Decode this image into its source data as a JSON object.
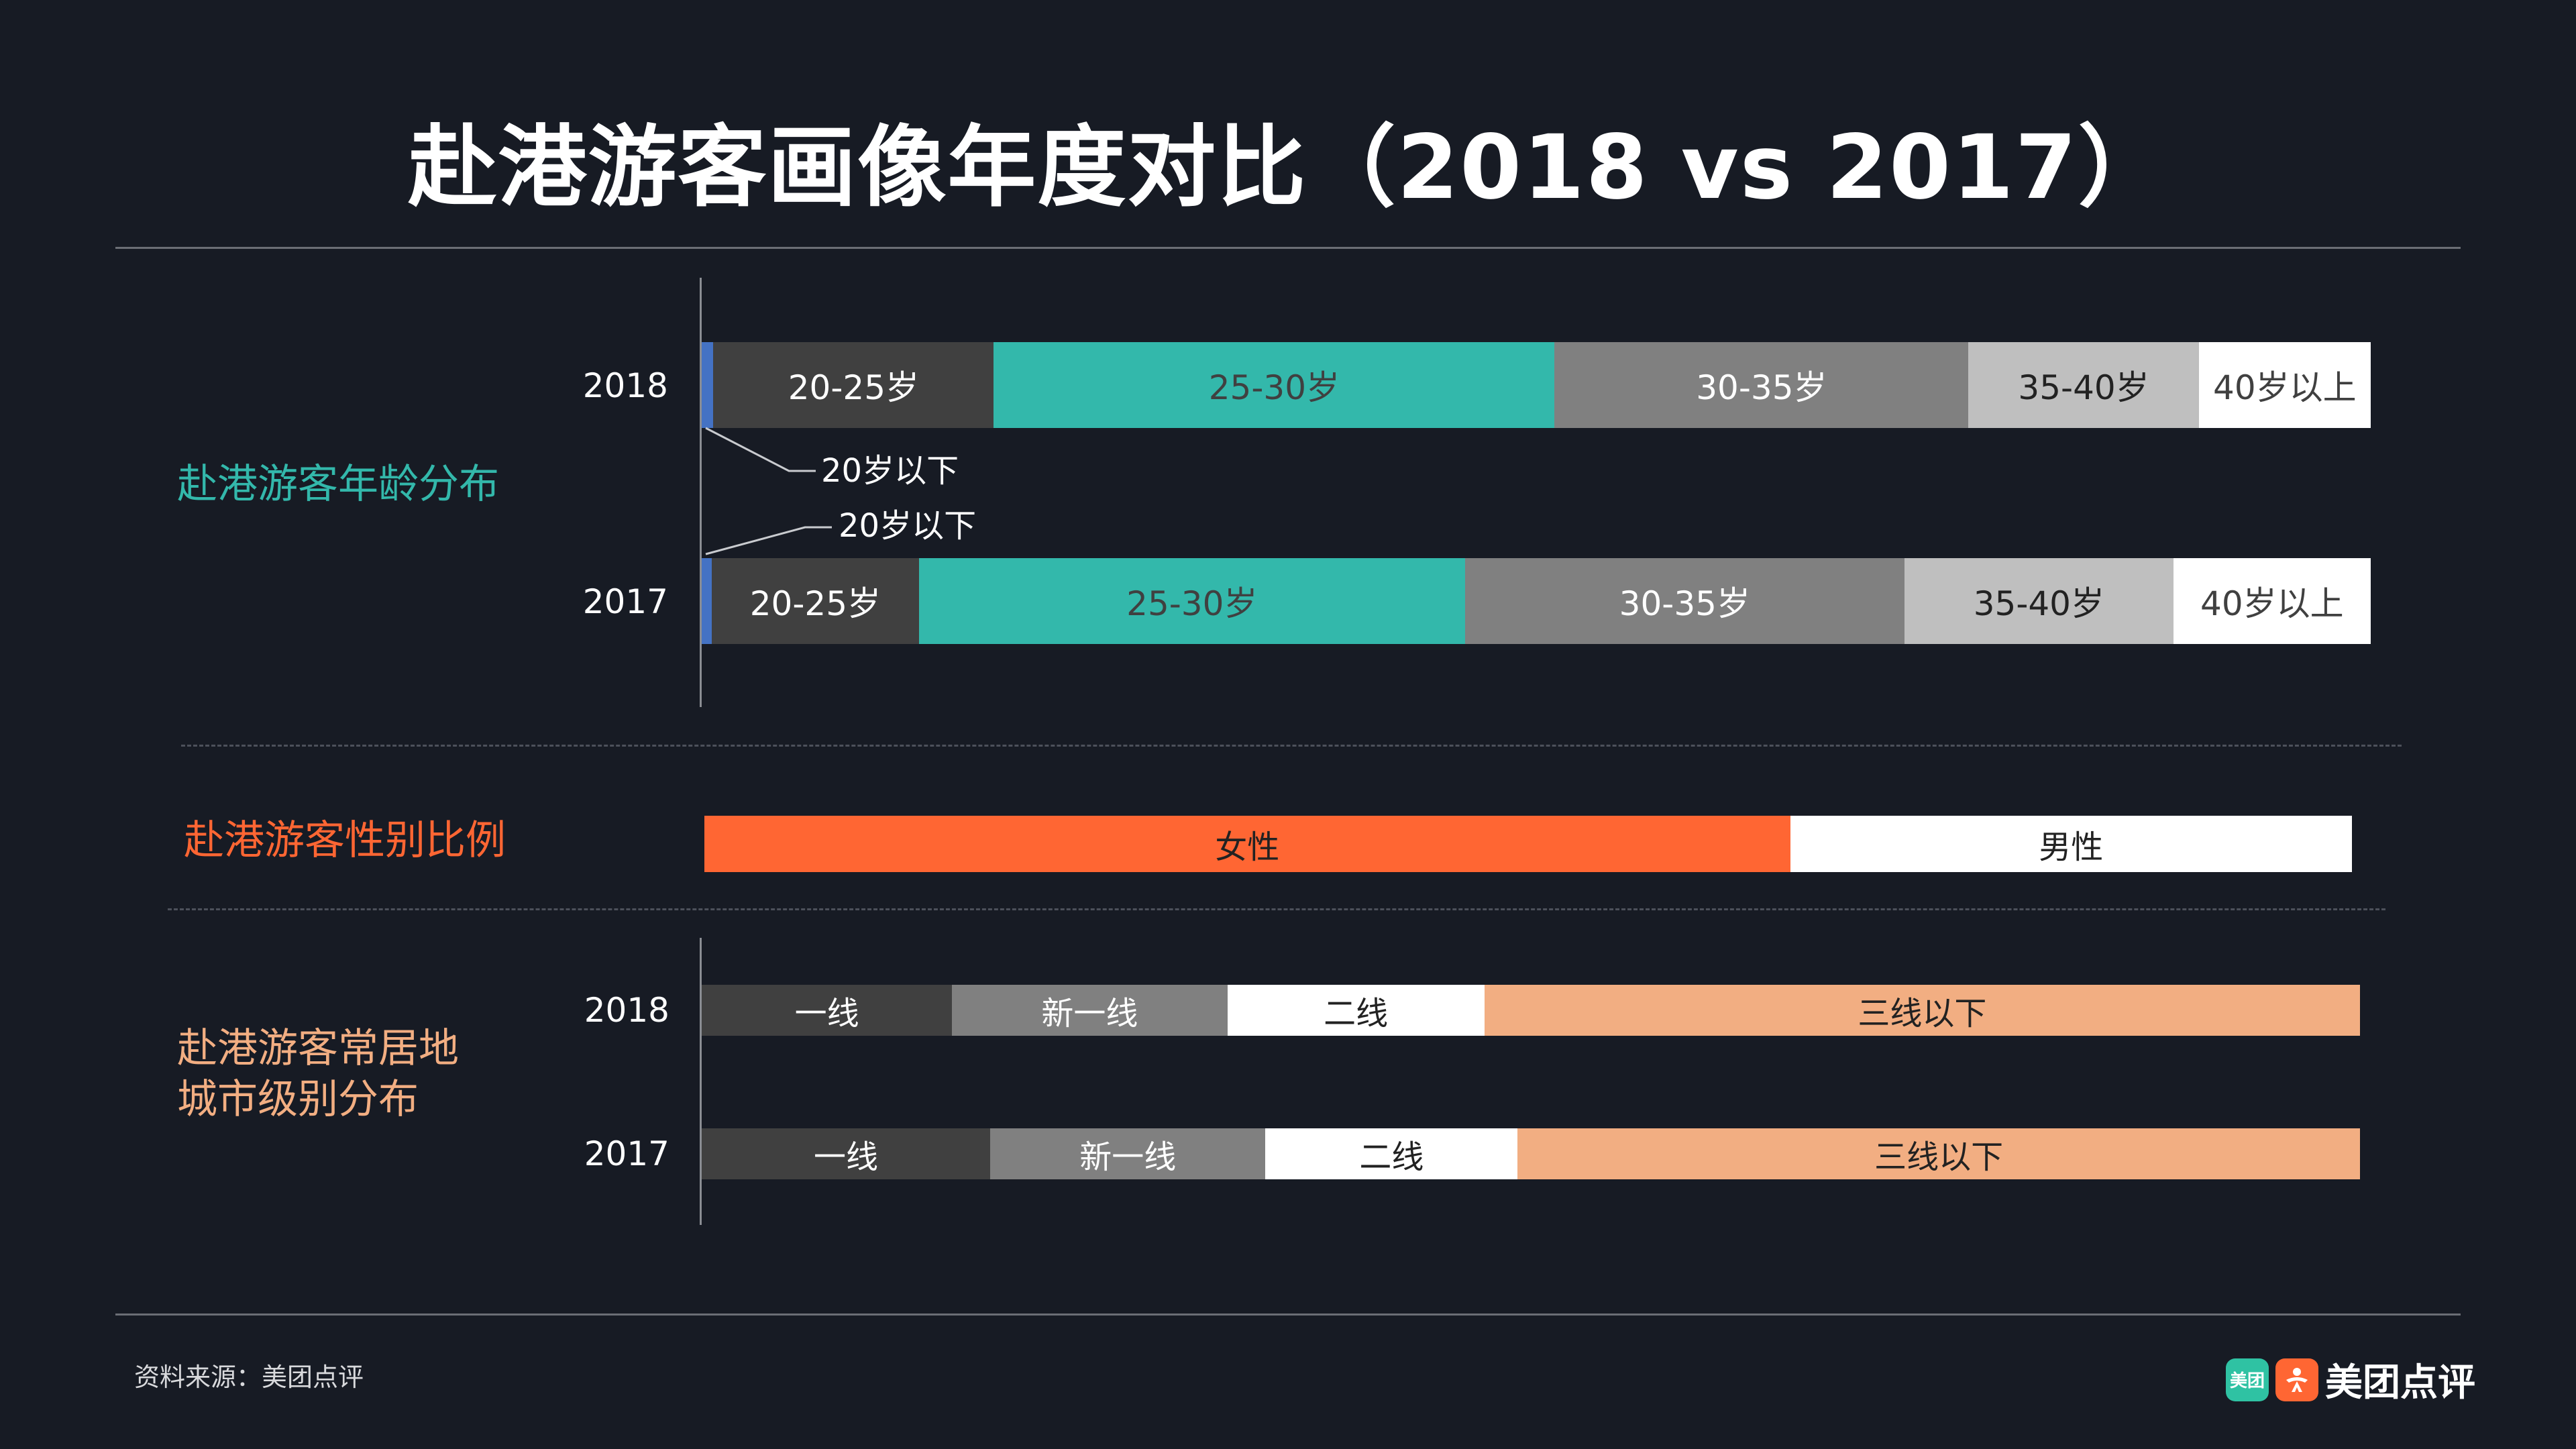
{
  "title": "赴港游客画像年度对比（2018 vs 2017）",
  "sections": {
    "age": "赴港游客年龄分布",
    "gender": "赴港游客性别比例",
    "city_line1": "赴港游客常居地",
    "city_line2": "城市级别分布"
  },
  "source": "资料来源：美团点评",
  "brand": {
    "badge_text": "美团",
    "name": "美团点评"
  },
  "colors": {
    "background": "#171b24",
    "age_teal": "#33b8ab",
    "gender_orange": "#ff6633",
    "city_peach": "#f2ae82",
    "dark_gray": "#404040",
    "mid_gray": "#808080",
    "light_gray": "#bfbfbf",
    "white": "#ffffff",
    "blue": "#4472c4",
    "age_label_color": "#33b8ab",
    "gender_label_color": "#ff6633",
    "city_label_color": "#f2ae82"
  },
  "chart_data": [
    {
      "type": "bar",
      "orientation": "horizontal",
      "stacked": "percent",
      "title": "赴港游客年龄分布",
      "categories": [
        "2018",
        "2017"
      ],
      "series": [
        {
          "name": "20岁以下",
          "values": [
            0.7,
            0.6
          ]
        },
        {
          "name": "20-25岁",
          "values": [
            16.8,
            12.5
          ]
        },
        {
          "name": "25-30岁",
          "values": [
            33.6,
            32.9
          ]
        },
        {
          "name": "30-35岁",
          "values": [
            24.8,
            26.5
          ]
        },
        {
          "name": "35-40岁",
          "values": [
            13.8,
            16.2
          ]
        },
        {
          "name": "40岁以上",
          "values": [
            10.3,
            11.9
          ]
        }
      ],
      "callouts": [
        "20岁以下",
        "20岁以下"
      ]
    },
    {
      "type": "bar",
      "orientation": "horizontal",
      "stacked": "percent",
      "title": "赴港游客性别比例",
      "categories": [
        ""
      ],
      "series": [
        {
          "name": "女性",
          "values": [
            65.9
          ]
        },
        {
          "name": "男性",
          "values": [
            34.1
          ]
        }
      ]
    },
    {
      "type": "bar",
      "orientation": "horizontal",
      "stacked": "percent",
      "title": "赴港游客常居地城市级别分布",
      "categories": [
        "2018",
        "2017"
      ],
      "series": [
        {
          "name": "一线",
          "values": [
            15.1,
            17.4
          ]
        },
        {
          "name": "新一线",
          "values": [
            16.6,
            16.6
          ]
        },
        {
          "name": "二线",
          "values": [
            15.5,
            15.2
          ]
        },
        {
          "name": "三线以下",
          "values": [
            52.8,
            50.8
          ]
        }
      ]
    }
  ]
}
